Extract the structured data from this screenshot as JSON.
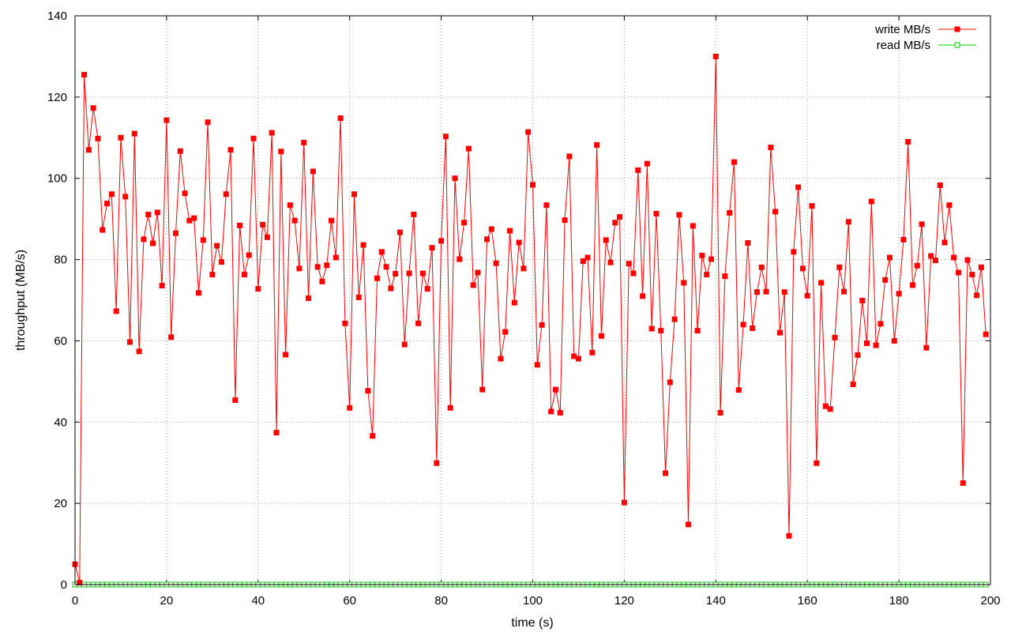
{
  "chart_data": {
    "type": "line",
    "xlabel": "time (s)",
    "ylabel": "throughput (MB/s)",
    "xlim": [
      0,
      200
    ],
    "ylim": [
      0,
      140
    ],
    "x_ticks": [
      "0",
      "20",
      "40",
      "60",
      "80",
      "100",
      "120",
      "140",
      "160",
      "180",
      "200"
    ],
    "y_ticks": [
      "0",
      "20",
      "40",
      "60",
      "80",
      "100",
      "120",
      "140"
    ],
    "grid": true,
    "legend_position": "top-right",
    "series": [
      {
        "name": "write MB/s",
        "color": "#ff0000",
        "marker": "filled-square",
        "values": [
          5,
          0.5,
          125.5,
          107,
          117.3,
          109.8,
          87.3,
          93.8,
          96.1,
          67.3,
          110,
          95.5,
          59.7,
          111,
          57.4,
          85,
          91.1,
          84,
          91.6,
          73.6,
          114.3,
          60.9,
          86.5,
          106.7,
          96.3,
          89.6,
          90.2,
          71.8,
          84.8,
          113.8,
          76.3,
          83.4,
          79.4,
          96.1,
          107,
          45.4,
          88.4,
          76.3,
          81.1,
          109.8,
          72.8,
          88.6,
          85.5,
          111.2,
          37.4,
          106.6,
          56.6,
          93.4,
          89.6,
          77.8,
          108.8,
          70.5,
          101.7,
          78.2,
          74.6,
          78.6,
          89.6,
          80.5,
          114.8,
          64.3,
          43.5,
          96.1,
          70.7,
          83.6,
          47.7,
          36.6,
          75.4,
          81.9,
          78.2,
          72.9,
          76.5,
          86.7,
          59.1,
          76.6,
          91.1,
          64.3,
          76.6,
          72.8,
          82.9,
          29.9,
          84.6,
          110.3,
          43.5,
          100,
          80.1,
          89.1,
          107.3,
          73.7,
          76.8,
          48,
          85,
          87.5,
          79.1,
          55.6,
          62.2,
          87.1,
          69.4,
          84.2,
          77.8,
          111.4,
          98.4,
          54.1,
          63.9,
          93.4,
          42.6,
          48,
          42.3,
          89.7,
          105.4,
          56.2,
          55.6,
          79.6,
          80.5,
          57.1,
          108.2,
          61.2,
          84.8,
          79.3,
          89.1,
          90.5,
          20.2,
          79,
          76.6,
          102,
          71,
          103.6,
          63,
          91.3,
          62.5,
          27.4,
          49.8,
          65.3,
          91,
          74.3,
          14.8,
          88.3,
          62.5,
          81,
          76.3,
          80.1,
          130,
          42.3,
          75.9,
          91.5,
          104,
          47.9,
          64,
          84.1,
          63.1,
          72,
          78.1,
          72.1,
          107.6,
          91.8,
          62,
          72,
          12,
          81.9,
          97.8,
          77.8,
          71.1,
          93.2,
          29.9,
          74.3,
          43.9,
          43.2,
          60.8,
          78.1,
          72.1,
          89.3,
          49.3,
          56.5,
          69.9,
          59.4,
          94.3,
          58.9,
          64.2,
          75,
          80.5,
          60,
          71.6,
          84.9,
          109,
          73.7,
          78.5,
          88.7,
          58.3,
          80.9,
          79.8,
          98.3,
          84.2,
          93.4,
          80.5,
          76.8,
          25,
          79.9,
          76.3,
          71.2,
          78.1,
          61.6
        ]
      },
      {
        "name": "read MB/s",
        "color": "#00cc00",
        "marker": "open-square",
        "constant_value": 0
      }
    ]
  }
}
